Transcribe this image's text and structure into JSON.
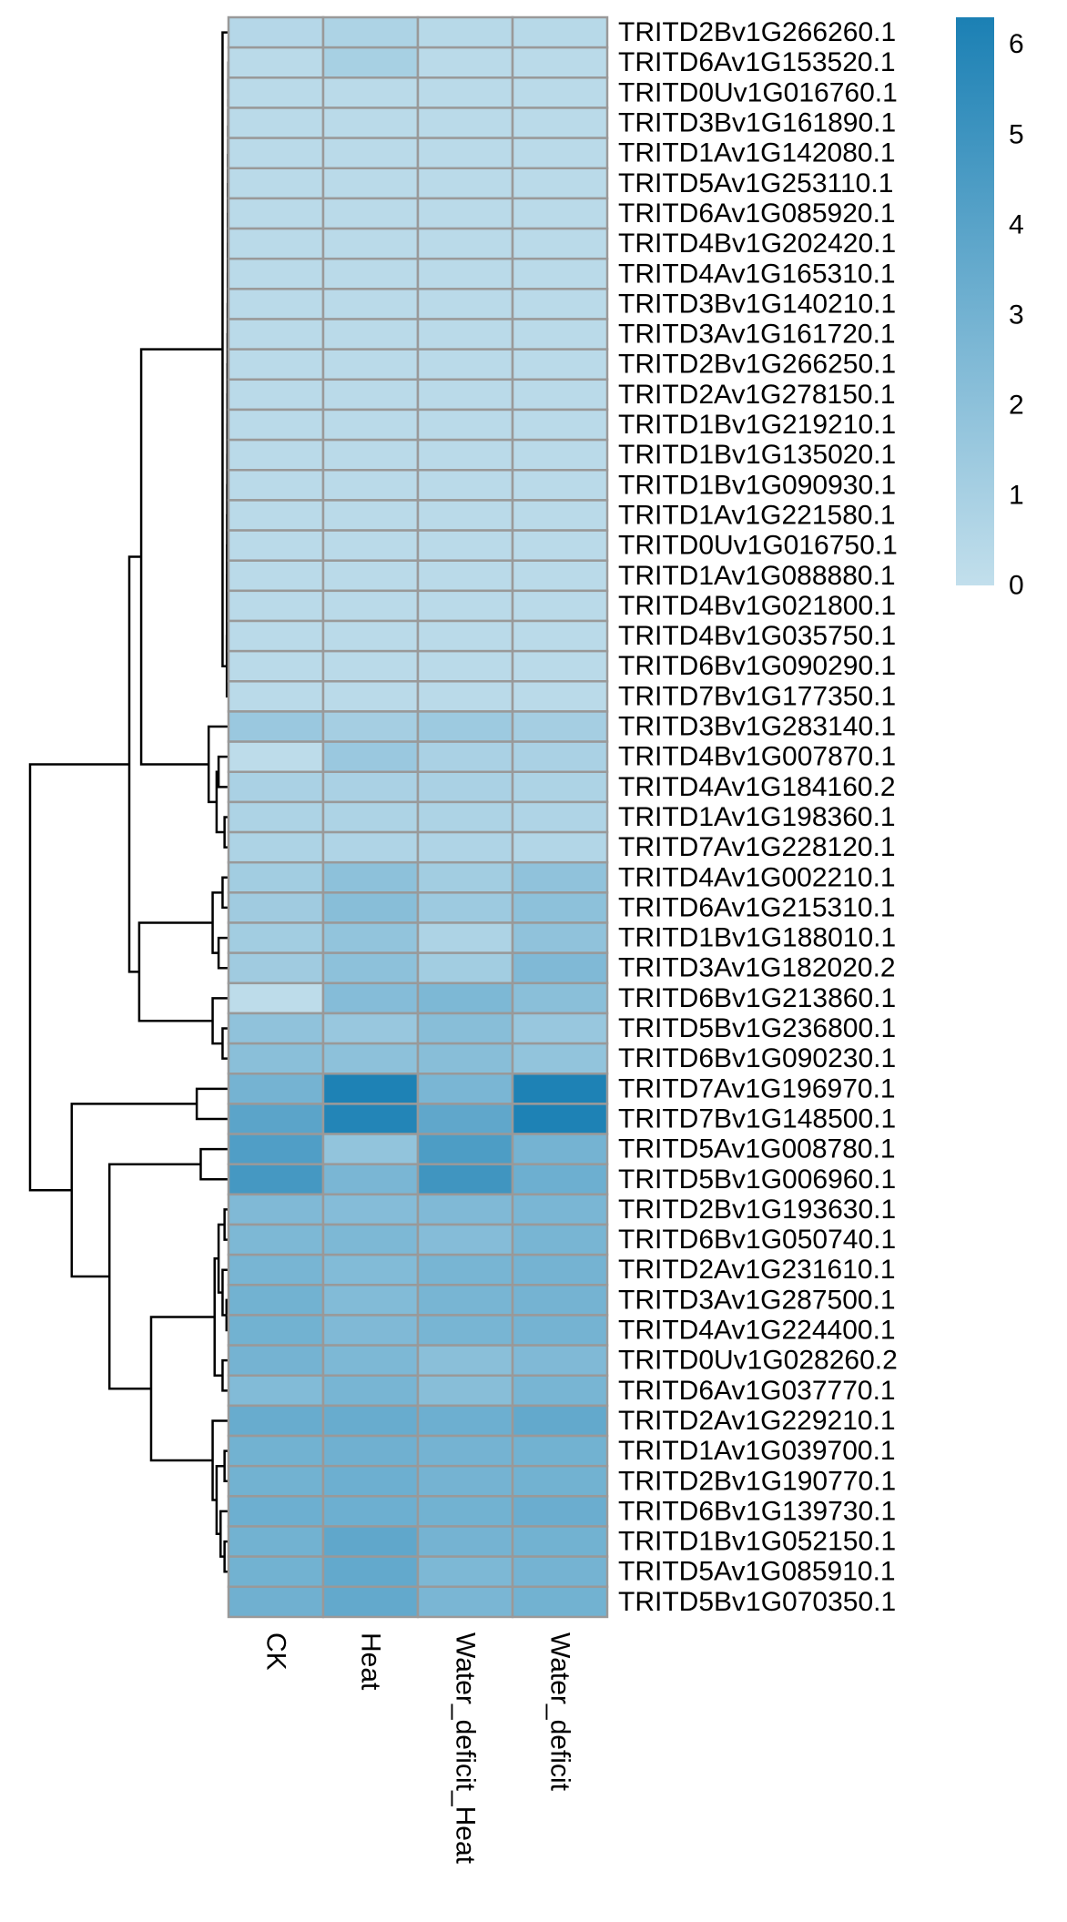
{
  "chart_data": {
    "type": "heatmap",
    "columns": [
      "CK",
      "Heat",
      "Water_deficit_Heat",
      "Water_deficit"
    ],
    "rows": [
      {
        "gene": "TRITD2Bv1G266260.1",
        "values": [
          0.5,
          0.8,
          0.4,
          0.4
        ]
      },
      {
        "gene": "TRITD6Av1G153520.1",
        "values": [
          0.3,
          1.0,
          0.3,
          0.3
        ]
      },
      {
        "gene": "TRITD0Uv1G016760.1",
        "values": [
          0.3,
          0.3,
          0.3,
          0.3
        ]
      },
      {
        "gene": "TRITD3Bv1G161890.1",
        "values": [
          0.3,
          0.3,
          0.3,
          0.3
        ]
      },
      {
        "gene": "TRITD1Av1G142080.1",
        "values": [
          0.3,
          0.3,
          0.3,
          0.3
        ]
      },
      {
        "gene": "TRITD5Av1G253110.1",
        "values": [
          0.3,
          0.3,
          0.3,
          0.3
        ]
      },
      {
        "gene": "TRITD6Av1G085920.1",
        "values": [
          0.3,
          0.3,
          0.3,
          0.3
        ]
      },
      {
        "gene": "TRITD4Bv1G202420.1",
        "values": [
          0.3,
          0.3,
          0.3,
          0.3
        ]
      },
      {
        "gene": "TRITD4Av1G165310.1",
        "values": [
          0.3,
          0.3,
          0.3,
          0.3
        ]
      },
      {
        "gene": "TRITD3Bv1G140210.1",
        "values": [
          0.3,
          0.3,
          0.3,
          0.3
        ]
      },
      {
        "gene": "TRITD3Av1G161720.1",
        "values": [
          0.3,
          0.3,
          0.3,
          0.3
        ]
      },
      {
        "gene": "TRITD2Bv1G266250.1",
        "values": [
          0.3,
          0.3,
          0.3,
          0.3
        ]
      },
      {
        "gene": "TRITD2Av1G278150.1",
        "values": [
          0.3,
          0.3,
          0.3,
          0.3
        ]
      },
      {
        "gene": "TRITD1Bv1G219210.1",
        "values": [
          0.3,
          0.3,
          0.3,
          0.3
        ]
      },
      {
        "gene": "TRITD1Bv1G135020.1",
        "values": [
          0.3,
          0.3,
          0.3,
          0.3
        ]
      },
      {
        "gene": "TRITD1Bv1G090930.1",
        "values": [
          0.3,
          0.3,
          0.3,
          0.3
        ]
      },
      {
        "gene": "TRITD1Av1G221580.1",
        "values": [
          0.3,
          0.3,
          0.3,
          0.3
        ]
      },
      {
        "gene": "TRITD0Uv1G016750.1",
        "values": [
          0.3,
          0.3,
          0.3,
          0.3
        ]
      },
      {
        "gene": "TRITD1Av1G088880.1",
        "values": [
          0.3,
          0.3,
          0.3,
          0.3
        ]
      },
      {
        "gene": "TRITD4Bv1G021800.1",
        "values": [
          0.3,
          0.3,
          0.3,
          0.3
        ]
      },
      {
        "gene": "TRITD4Bv1G035750.1",
        "values": [
          0.3,
          0.3,
          0.3,
          0.3
        ]
      },
      {
        "gene": "TRITD6Bv1G090290.1",
        "values": [
          0.3,
          0.3,
          0.3,
          0.3
        ]
      },
      {
        "gene": "TRITD7Bv1G177350.1",
        "values": [
          0.3,
          0.3,
          0.3,
          0.3
        ]
      },
      {
        "gene": "TRITD3Bv1G283140.1",
        "values": [
          1.5,
          1.1,
          1.4,
          1.1
        ]
      },
      {
        "gene": "TRITD4Bv1G007870.1",
        "values": [
          0.2,
          1.5,
          0.9,
          0.9
        ]
      },
      {
        "gene": "TRITD4Av1G184160.2",
        "values": [
          0.9,
          0.9,
          0.9,
          0.8
        ]
      },
      {
        "gene": "TRITD1Av1G198360.1",
        "values": [
          0.8,
          0.8,
          0.8,
          0.7
        ]
      },
      {
        "gene": "TRITD7Av1G228120.1",
        "values": [
          0.8,
          0.7,
          0.7,
          0.6
        ]
      },
      {
        "gene": "TRITD4Av1G002210.1",
        "values": [
          1.2,
          2.0,
          1.2,
          1.9
        ]
      },
      {
        "gene": "TRITD6Av1G215310.1",
        "values": [
          1.3,
          2.2,
          1.4,
          2.0
        ]
      },
      {
        "gene": "TRITD1Bv1G188010.1",
        "values": [
          1.2,
          1.8,
          0.8,
          1.9
        ]
      },
      {
        "gene": "TRITD3Av1G182020.2",
        "values": [
          1.3,
          2.0,
          1.2,
          2.5
        ]
      },
      {
        "gene": "TRITD6Bv1G213860.1",
        "values": [
          0.2,
          2.3,
          2.6,
          2.1
        ]
      },
      {
        "gene": "TRITD5Bv1G236800.1",
        "values": [
          1.9,
          1.6,
          2.2,
          1.6
        ]
      },
      {
        "gene": "TRITD6Bv1G090230.1",
        "values": [
          2.1,
          2.0,
          2.2,
          1.8
        ]
      },
      {
        "gene": "TRITD7Av1G196970.1",
        "values": [
          2.9,
          6.2,
          2.7,
          6.2
        ]
      },
      {
        "gene": "TRITD7Bv1G148500.1",
        "values": [
          3.9,
          6.0,
          3.7,
          6.2
        ]
      },
      {
        "gene": "TRITD5Av1G008780.1",
        "values": [
          4.3,
          1.8,
          4.4,
          2.9
        ]
      },
      {
        "gene": "TRITD5Bv1G006960.1",
        "values": [
          4.7,
          2.7,
          4.9,
          3.2
        ]
      },
      {
        "gene": "TRITD2Bv1G193630.1",
        "values": [
          2.5,
          2.3,
          2.5,
          2.7
        ]
      },
      {
        "gene": "TRITD6Bv1G050740.1",
        "values": [
          2.6,
          2.6,
          2.3,
          2.8
        ]
      },
      {
        "gene": "TRITD2Av1G231610.1",
        "values": [
          2.8,
          2.4,
          2.8,
          2.9
        ]
      },
      {
        "gene": "TRITD3Av1G287500.1",
        "values": [
          3.0,
          2.4,
          2.8,
          2.9
        ]
      },
      {
        "gene": "TRITD4Av1G224400.1",
        "values": [
          3.0,
          2.5,
          2.8,
          2.9
        ]
      },
      {
        "gene": "TRITD0Uv1G028260.2",
        "values": [
          2.9,
          2.6,
          2.1,
          2.5
        ]
      },
      {
        "gene": "TRITD6Av1G037770.1",
        "values": [
          2.4,
          2.8,
          2.2,
          2.8
        ]
      },
      {
        "gene": "TRITD2Av1G229210.1",
        "values": [
          3.4,
          3.4,
          3.2,
          3.6
        ]
      },
      {
        "gene": "TRITD1Av1G039700.1",
        "values": [
          3.0,
          3.1,
          2.9,
          3.0
        ]
      },
      {
        "gene": "TRITD2Bv1G190770.1",
        "values": [
          3.0,
          3.2,
          2.9,
          3.0
        ]
      },
      {
        "gene": "TRITD6Bv1G139730.1",
        "values": [
          3.2,
          3.2,
          3.0,
          3.3
        ]
      },
      {
        "gene": "TRITD1Bv1G052150.1",
        "values": [
          3.0,
          3.7,
          2.9,
          3.0
        ]
      },
      {
        "gene": "TRITD5Av1G085910.1",
        "values": [
          3.0,
          3.6,
          2.6,
          2.9
        ]
      },
      {
        "gene": "TRITD5Bv1G070350.1",
        "values": [
          3.1,
          3.6,
          2.7,
          3.0
        ]
      }
    ],
    "color_scale": {
      "min": 0,
      "max": 6.3,
      "low_color": "#c2dfec",
      "high_color": "#1b80b4",
      "ticks": [
        0,
        1,
        2,
        3,
        4,
        5,
        6
      ]
    },
    "cell_border_color": "#999999",
    "row_dendrogram": true
  }
}
